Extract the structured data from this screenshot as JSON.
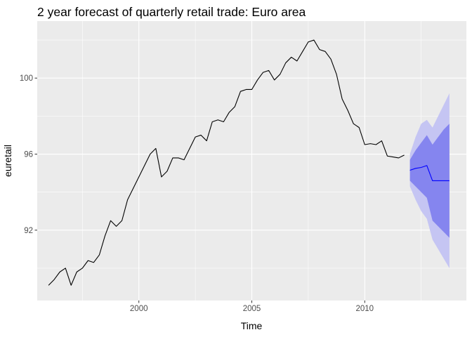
{
  "chart_data": {
    "type": "line",
    "title": "2 year forecast of quarterly retail trade: Euro area",
    "xlabel": "Time",
    "ylabel": "euretail",
    "xlim": [
      1995.5,
      2014.5
    ],
    "ylim": [
      88.3,
      103.0
    ],
    "x_ticks": [
      {
        "value": 2000,
        "label": "2000"
      },
      {
        "value": 2005,
        "label": "2005"
      },
      {
        "value": 2010,
        "label": "2010"
      }
    ],
    "y_ticks": [
      {
        "value": 92,
        "label": "92"
      },
      {
        "value": 96,
        "label": "96"
      },
      {
        "value": 100,
        "label": "100"
      }
    ],
    "grid": true,
    "legend": "none",
    "colors": {
      "panel_background": "#ebebeb",
      "grid_major": "#ffffff",
      "history_line": "#000000",
      "forecast_line": "#0000ff",
      "interval_80": "#8585ef",
      "interval_95": "#c5c5f3"
    },
    "series": [
      {
        "x": [
          1996.0,
          1996.25,
          1996.5,
          1996.75,
          1997.0,
          1997.25,
          1997.5,
          1997.75,
          1998.0,
          1998.25,
          1998.5,
          1998.75,
          1999.0,
          1999.25,
          1999.5,
          1999.75,
          2000.0,
          2000.25,
          2000.5,
          2000.75,
          2001.0,
          2001.25,
          2001.5,
          2001.75,
          2002.0,
          2002.25,
          2002.5,
          2002.75,
          2003.0,
          2003.25,
          2003.5,
          2003.75,
          2004.0,
          2004.25,
          2004.5,
          2004.75,
          2005.0,
          2005.25,
          2005.5,
          2005.75,
          2006.0,
          2006.25,
          2006.5,
          2006.75,
          2007.0,
          2007.25,
          2007.5,
          2007.75,
          2008.0,
          2008.25,
          2008.5,
          2008.75,
          2009.0,
          2009.25,
          2009.5,
          2009.75,
          2010.0,
          2010.25,
          2010.5,
          2010.75,
          2011.0,
          2011.25,
          2011.5,
          2011.75
        ],
        "values": [
          89.1,
          89.4,
          89.8,
          90.0,
          89.1,
          89.8,
          90.0,
          90.4,
          90.3,
          90.7,
          91.7,
          92.5,
          92.2,
          92.5,
          93.6,
          94.2,
          94.8,
          95.4,
          96.0,
          96.3,
          94.8,
          95.1,
          95.8,
          95.8,
          95.7,
          96.3,
          96.9,
          97.0,
          96.7,
          97.7,
          97.8,
          97.7,
          98.2,
          98.5,
          99.3,
          99.4,
          99.4,
          99.9,
          100.3,
          100.4,
          99.9,
          100.2,
          100.8,
          101.1,
          100.9,
          101.4,
          101.9,
          102.0,
          101.5,
          101.4,
          101.0,
          100.2,
          98.9,
          98.3,
          97.6,
          97.4,
          96.5,
          96.55,
          96.5,
          96.7,
          95.9,
          95.85,
          95.8,
          95.95
        ]
      },
      {
        "x": [
          2012.0,
          2012.25,
          2012.5,
          2012.75,
          2013.0,
          2013.25,
          2013.5,
          2013.75
        ],
        "values": [
          95.15,
          95.25,
          95.3,
          95.4,
          94.6,
          94.6,
          94.6,
          94.6
        ],
        "lo80": [
          94.6,
          94.3,
          94.0,
          93.7,
          92.5,
          92.2,
          91.9,
          91.6
        ],
        "hi80": [
          95.7,
          96.2,
          96.6,
          97.0,
          96.5,
          96.9,
          97.3,
          97.6
        ],
        "lo95": [
          94.3,
          93.6,
          93.0,
          92.6,
          91.5,
          91.0,
          90.5,
          90.0
        ],
        "hi95": [
          96.0,
          96.9,
          97.6,
          97.8,
          97.4,
          98.0,
          98.6,
          99.2
        ]
      }
    ]
  }
}
